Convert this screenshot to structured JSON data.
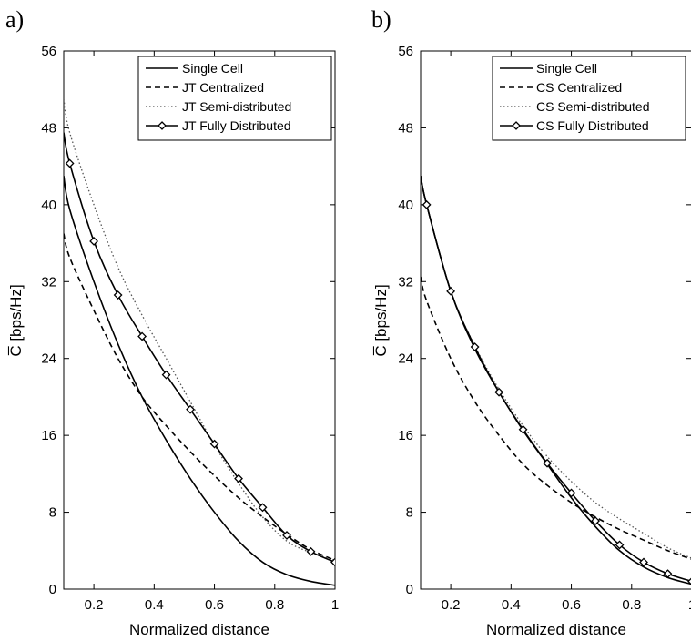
{
  "chart_data": [
    {
      "type": "line",
      "panel_label": "a)",
      "xlabel": "Normalized distance",
      "ylabel": "C̅  [bps/Hz]",
      "xlim": [
        0.1,
        1.0
      ],
      "ylim": [
        0,
        56
      ],
      "xticks": [
        0.2,
        0.4,
        0.6,
        0.8,
        1.0
      ],
      "xtick_labels": [
        "0.2",
        "0.4",
        "0.6",
        "0.8",
        "1"
      ],
      "yticks": [
        0,
        8,
        16,
        24,
        32,
        40,
        48,
        56
      ],
      "ytick_labels": [
        "0",
        "8",
        "16",
        "24",
        "32",
        "40",
        "48",
        "56"
      ],
      "grid": false,
      "legend_position": "top-right",
      "x": [
        0.1,
        0.12,
        0.2,
        0.28,
        0.36,
        0.44,
        0.52,
        0.6,
        0.68,
        0.76,
        0.84,
        0.92,
        1.0
      ],
      "series": [
        {
          "name": "Single Cell",
          "style": "solid",
          "marker": "none",
          "values": [
            43.0,
            39.5,
            32.0,
            25.5,
            20.0,
            15.5,
            11.5,
            8.0,
            5.0,
            2.8,
            1.5,
            0.8,
            0.4
          ]
        },
        {
          "name": "JT Centralized",
          "style": "dashed",
          "marker": "none",
          "values": [
            37.0,
            34.5,
            29.0,
            24.0,
            20.0,
            17.0,
            14.3,
            11.8,
            9.5,
            7.5,
            5.7,
            4.1,
            3.0
          ]
        },
        {
          "name": "JT Semi-distributed",
          "style": "dotted",
          "marker": "none",
          "values": [
            51.0,
            47.5,
            40.0,
            33.5,
            28.5,
            24.0,
            19.5,
            15.0,
            11.0,
            7.5,
            5.0,
            3.8,
            3.0
          ]
        },
        {
          "name": "JT Fully Distributed",
          "style": "solid",
          "marker": "diamond",
          "values": [
            47.5,
            44.3,
            36.2,
            30.6,
            26.3,
            22.3,
            18.7,
            15.1,
            11.5,
            8.5,
            5.6,
            3.9,
            2.8
          ]
        }
      ]
    },
    {
      "type": "line",
      "panel_label": "b)",
      "xlabel": "Normalized distance",
      "ylabel": "C̅  [bps/Hz]",
      "xlim": [
        0.1,
        1.0
      ],
      "ylim": [
        0,
        56
      ],
      "xticks": [
        0.2,
        0.4,
        0.6,
        0.8,
        1.0
      ],
      "xtick_labels": [
        "0.2",
        "0.4",
        "0.6",
        "0.8",
        "1"
      ],
      "yticks": [
        0,
        8,
        16,
        24,
        32,
        40,
        48,
        56
      ],
      "ytick_labels": [
        "0",
        "8",
        "16",
        "24",
        "32",
        "40",
        "48",
        "56"
      ],
      "grid": false,
      "legend_position": "top-right",
      "x": [
        0.1,
        0.12,
        0.2,
        0.28,
        0.36,
        0.44,
        0.52,
        0.6,
        0.68,
        0.76,
        0.84,
        0.92,
        1.0
      ],
      "series": [
        {
          "name": "Single Cell",
          "style": "solid",
          "marker": "none",
          "values": [
            43.0,
            40.0,
            31.0,
            25.0,
            20.5,
            16.5,
            13.0,
            9.5,
            6.5,
            4.0,
            2.3,
            1.2,
            0.5
          ]
        },
        {
          "name": "CS Centralized",
          "style": "dashed",
          "marker": "none",
          "values": [
            32.5,
            30.0,
            24.0,
            19.5,
            16.0,
            13.0,
            10.8,
            9.0,
            7.5,
            6.2,
            5.1,
            4.0,
            3.1
          ]
        },
        {
          "name": "CS Semi-distributed",
          "style": "dotted",
          "marker": "none",
          "values": [
            43.0,
            40.0,
            31.0,
            25.3,
            20.8,
            17.0,
            13.8,
            11.2,
            9.0,
            7.3,
            5.8,
            4.3,
            3.2
          ]
        },
        {
          "name": "CS Fully Distributed",
          "style": "solid",
          "marker": "diamond",
          "values": [
            43.0,
            40.0,
            31.0,
            25.2,
            20.5,
            16.6,
            13.1,
            10.0,
            7.1,
            4.6,
            2.8,
            1.6,
            0.8
          ]
        }
      ]
    }
  ]
}
